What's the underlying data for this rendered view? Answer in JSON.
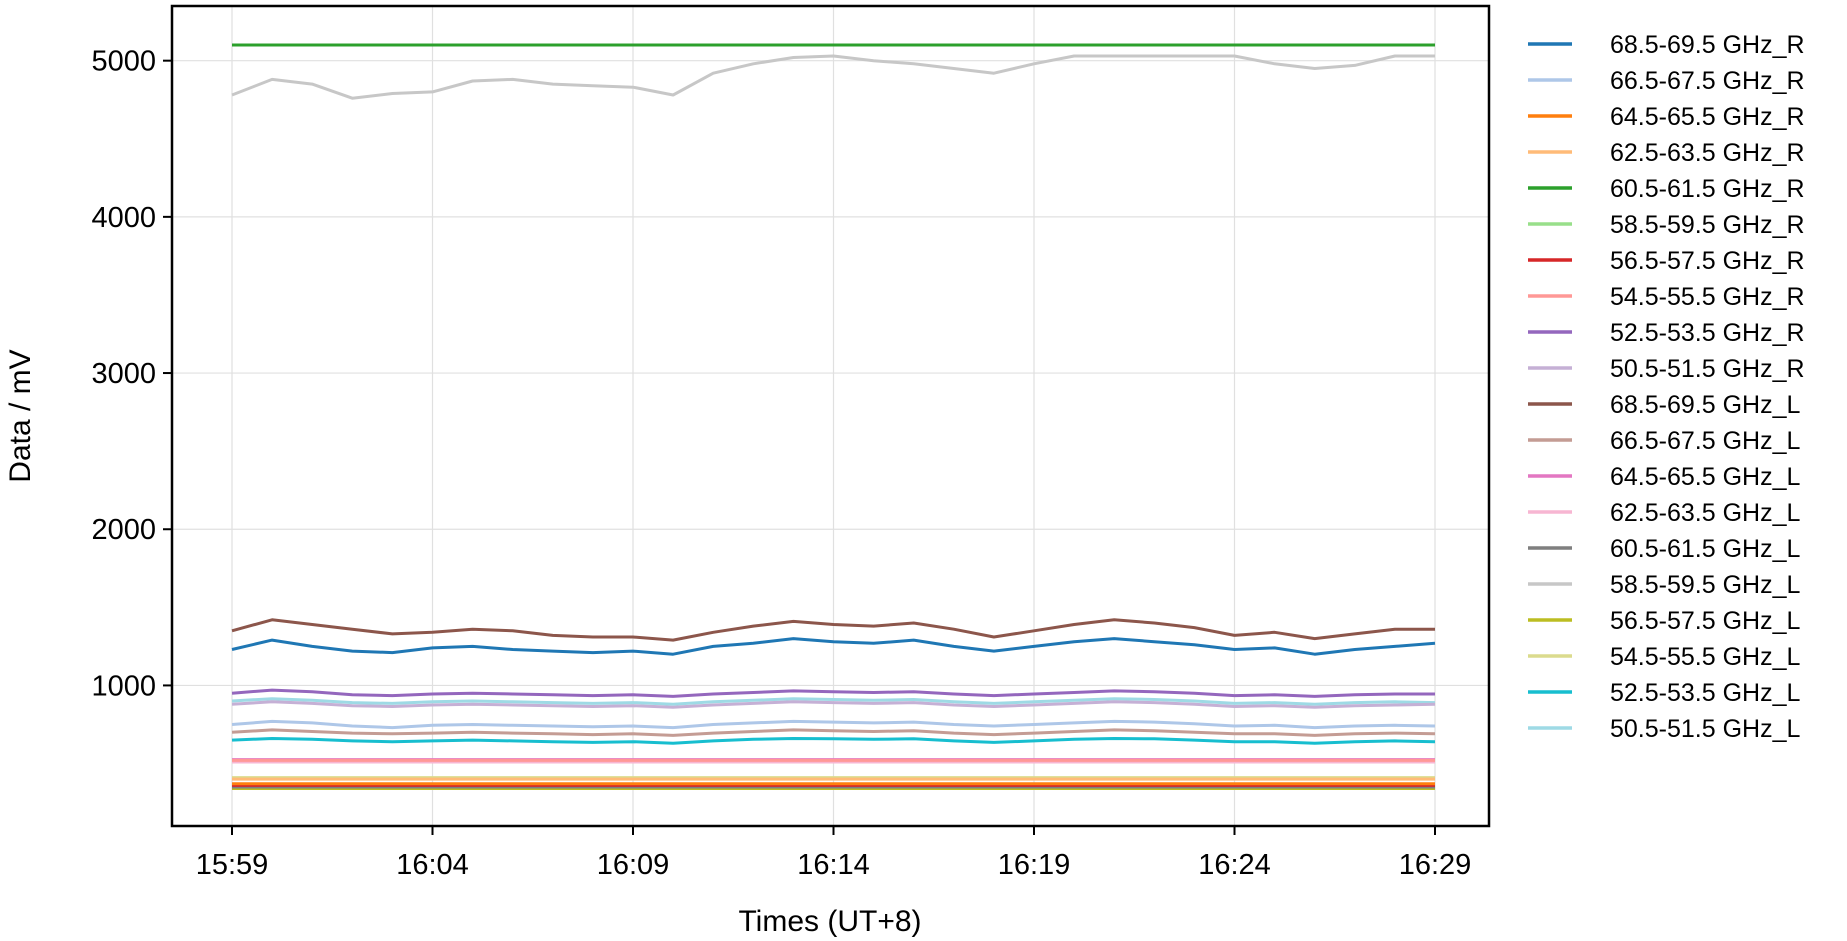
{
  "chart_data": {
    "type": "line",
    "title": "",
    "xlabel": "Times (UT+8)",
    "ylabel": "Data / mV",
    "x_tick_labels": [
      "15:59",
      "16:04",
      "16:09",
      "16:14",
      "16:19",
      "16:24",
      "16:29"
    ],
    "y_ticks": [
      1000,
      2000,
      3000,
      4000,
      5000
    ],
    "xlim": [
      "15:56",
      "16:30"
    ],
    "ylim": [
      100,
      5350
    ],
    "grid": true,
    "legend_position": "outside-right",
    "x_minutes": [
      0,
      1,
      2,
      3,
      4,
      5,
      6,
      7,
      8,
      9,
      10,
      11,
      12,
      13,
      14,
      15,
      16,
      17,
      18,
      19,
      20,
      21,
      22,
      23,
      24,
      25,
      26,
      27,
      28,
      29,
      30
    ],
    "series": [
      {
        "name": "68.5-69.5 GHz_R",
        "color": "#1f77b4",
        "values": [
          1230,
          1290,
          1250,
          1220,
          1210,
          1240,
          1250,
          1230,
          1220,
          1210,
          1220,
          1200,
          1250,
          1270,
          1300,
          1280,
          1270,
          1290,
          1250,
          1220,
          1250,
          1280,
          1300,
          1280,
          1260,
          1230,
          1240,
          1200,
          1230,
          1250,
          1270
        ]
      },
      {
        "name": "66.5-67.5 GHz_R",
        "color": "#aec7e8",
        "values": [
          750,
          770,
          760,
          740,
          730,
          745,
          750,
          745,
          740,
          735,
          740,
          730,
          750,
          760,
          770,
          765,
          760,
          765,
          750,
          740,
          750,
          760,
          770,
          765,
          755,
          740,
          745,
          730,
          740,
          745,
          740
        ]
      },
      {
        "name": "64.5-65.5 GHz_R",
        "color": "#ff7f0e",
        "values": [
          370,
          370,
          370,
          370,
          370,
          370,
          370,
          370,
          370,
          370,
          370,
          370,
          370,
          370,
          370,
          370,
          370,
          370,
          370,
          370,
          370,
          370,
          370,
          370,
          370,
          370,
          370,
          370,
          370,
          370,
          370
        ]
      },
      {
        "name": "62.5-63.5 GHz_R",
        "color": "#ffbb78",
        "values": [
          400,
          400,
          400,
          400,
          400,
          400,
          400,
          400,
          400,
          400,
          400,
          400,
          400,
          400,
          400,
          400,
          400,
          400,
          400,
          400,
          400,
          400,
          400,
          400,
          400,
          400,
          400,
          400,
          400,
          400,
          400
        ]
      },
      {
        "name": "60.5-61.5 GHz_R",
        "color": "#2ca02c",
        "values": [
          5100,
          5100,
          5100,
          5100,
          5100,
          5100,
          5100,
          5100,
          5100,
          5100,
          5100,
          5100,
          5100,
          5100,
          5100,
          5100,
          5100,
          5100,
          5100,
          5100,
          5100,
          5100,
          5100,
          5100,
          5100,
          5100,
          5100,
          5100,
          5100,
          5100,
          5100
        ]
      },
      {
        "name": "58.5-59.5 GHz_R",
        "color": "#98df8a",
        "values": [
          5100,
          5100,
          5100,
          5100,
          5100,
          5100,
          5100,
          5100,
          5100,
          5100,
          5100,
          5100,
          5100,
          5100,
          5100,
          5100,
          5100,
          5100,
          5100,
          5100,
          5100,
          5100,
          5100,
          5100,
          5100,
          5100,
          5100,
          5100,
          5100,
          5100,
          5100
        ]
      },
      {
        "name": "56.5-57.5 GHz_R",
        "color": "#d62728",
        "values": [
          360,
          360,
          360,
          360,
          360,
          360,
          360,
          360,
          360,
          360,
          360,
          360,
          360,
          360,
          360,
          360,
          360,
          360,
          360,
          360,
          360,
          360,
          360,
          360,
          360,
          360,
          360,
          360,
          360,
          360,
          360
        ]
      },
      {
        "name": "54.5-55.5 GHz_R",
        "color": "#ff9896",
        "values": [
          520,
          520,
          520,
          520,
          520,
          520,
          520,
          520,
          520,
          520,
          520,
          520,
          520,
          520,
          520,
          520,
          520,
          520,
          520,
          520,
          520,
          520,
          520,
          520,
          520,
          520,
          520,
          520,
          520,
          520,
          520
        ]
      },
      {
        "name": "52.5-53.5 GHz_R",
        "color": "#9467bd",
        "values": [
          950,
          970,
          960,
          940,
          935,
          945,
          950,
          945,
          940,
          935,
          940,
          930,
          945,
          955,
          965,
          960,
          955,
          960,
          945,
          935,
          945,
          955,
          965,
          960,
          950,
          935,
          940,
          930,
          940,
          945,
          945
        ]
      },
      {
        "name": "50.5-51.5 GHz_R",
        "color": "#c5b0d5",
        "values": [
          880,
          895,
          885,
          870,
          865,
          875,
          880,
          875,
          870,
          865,
          870,
          860,
          875,
          885,
          895,
          890,
          885,
          890,
          875,
          865,
          875,
          885,
          895,
          890,
          880,
          865,
          870,
          860,
          870,
          875,
          880
        ]
      },
      {
        "name": "68.5-69.5 GHz_L",
        "color": "#8c564b",
        "values": [
          1350,
          1420,
          1390,
          1360,
          1330,
          1340,
          1360,
          1350,
          1320,
          1310,
          1310,
          1290,
          1340,
          1380,
          1410,
          1390,
          1380,
          1400,
          1360,
          1310,
          1350,
          1390,
          1420,
          1400,
          1370,
          1320,
          1340,
          1300,
          1330,
          1360,
          1360
        ]
      },
      {
        "name": "66.5-67.5 GHz_L",
        "color": "#c49c94",
        "values": [
          700,
          715,
          705,
          695,
          690,
          695,
          700,
          695,
          690,
          685,
          690,
          680,
          695,
          705,
          715,
          710,
          705,
          710,
          695,
          685,
          695,
          705,
          715,
          710,
          700,
          690,
          690,
          680,
          690,
          695,
          690
        ]
      },
      {
        "name": "64.5-65.5 GHz_L",
        "color": "#e377c2",
        "values": [
          525,
          525,
          525,
          525,
          525,
          525,
          525,
          525,
          525,
          525,
          525,
          525,
          525,
          525,
          525,
          525,
          525,
          525,
          525,
          525,
          525,
          525,
          525,
          525,
          525,
          525,
          525,
          525,
          525,
          525,
          525
        ]
      },
      {
        "name": "62.5-63.5 GHz_L",
        "color": "#f7b6d2",
        "values": [
          510,
          510,
          510,
          510,
          510,
          510,
          510,
          510,
          510,
          510,
          510,
          510,
          510,
          510,
          510,
          510,
          510,
          510,
          510,
          510,
          510,
          510,
          510,
          510,
          510,
          510,
          510,
          510,
          510,
          510,
          510
        ]
      },
      {
        "name": "60.5-61.5 GHz_L",
        "color": "#7f7f7f",
        "values": [
          350,
          350,
          350,
          350,
          350,
          350,
          350,
          350,
          350,
          350,
          350,
          350,
          350,
          350,
          350,
          350,
          350,
          350,
          350,
          350,
          350,
          350,
          350,
          350,
          350,
          350,
          350,
          350,
          350,
          350,
          350
        ]
      },
      {
        "name": "58.5-59.5 GHz_L",
        "color": "#c7c7c7",
        "values": [
          4780,
          4880,
          4850,
          4760,
          4790,
          4800,
          4870,
          4880,
          4850,
          4840,
          4830,
          4780,
          4920,
          4980,
          5020,
          5030,
          5000,
          4980,
          4950,
          4920,
          4980,
          5030,
          5030,
          5030,
          5030,
          5030,
          4980,
          4950,
          4970,
          5030,
          5030
        ]
      },
      {
        "name": "56.5-57.5 GHz_L",
        "color": "#bcbd22",
        "values": [
          340,
          340,
          340,
          340,
          340,
          340,
          340,
          340,
          340,
          340,
          340,
          340,
          340,
          340,
          340,
          340,
          340,
          340,
          340,
          340,
          340,
          340,
          340,
          340,
          340,
          340,
          340,
          340,
          340,
          340,
          340
        ]
      },
      {
        "name": "54.5-55.5 GHz_L",
        "color": "#dbdb8d",
        "values": [
          410,
          410,
          410,
          410,
          410,
          410,
          410,
          410,
          410,
          410,
          410,
          410,
          410,
          410,
          410,
          410,
          410,
          410,
          410,
          410,
          410,
          410,
          410,
          410,
          410,
          410,
          410,
          410,
          410,
          410,
          410
        ]
      },
      {
        "name": "52.5-53.5 GHz_L",
        "color": "#17becf",
        "values": [
          650,
          660,
          655,
          645,
          640,
          645,
          650,
          645,
          640,
          635,
          640,
          630,
          645,
          655,
          660,
          658,
          655,
          658,
          645,
          635,
          645,
          655,
          660,
          658,
          650,
          640,
          640,
          630,
          640,
          645,
          640
        ]
      },
      {
        "name": "50.5-51.5 GHz_L",
        "color": "#9edae5",
        "values": [
          900,
          915,
          905,
          890,
          885,
          895,
          900,
          895,
          890,
          885,
          890,
          880,
          895,
          905,
          915,
          910,
          905,
          910,
          895,
          885,
          895,
          905,
          915,
          910,
          900,
          885,
          890,
          880,
          890,
          895,
          890
        ]
      }
    ]
  }
}
